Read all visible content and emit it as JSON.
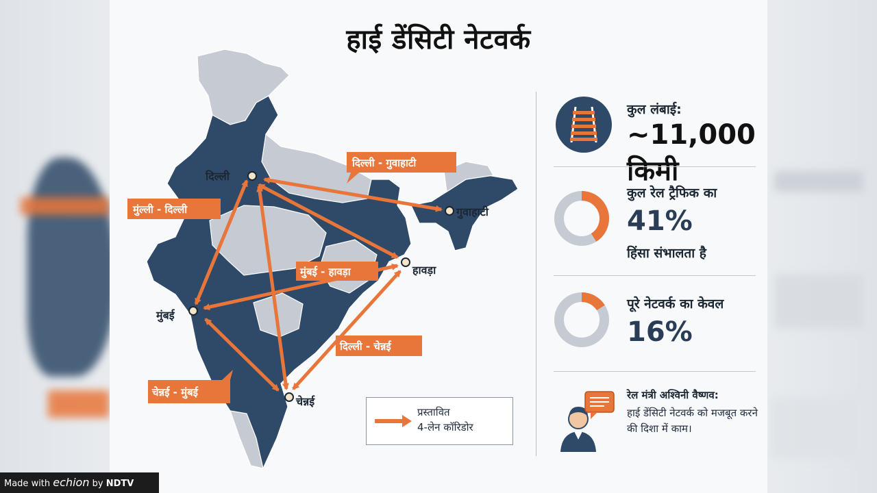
{
  "title": "हाई डेंसिटी नेटवर्क",
  "cities": [
    {
      "name": "दिल्ली"
    },
    {
      "name": "गुवाहाटी"
    },
    {
      "name": "हावड़ा"
    },
    {
      "name": "मुंबई"
    },
    {
      "name": "चेन्नई"
    }
  ],
  "corridors": [
    {
      "label": "दिल्ली - गुवाहाटी"
    },
    {
      "label": "मुंल्ली - दिल्ली"
    },
    {
      "label": "मुंबई - हावड़ा"
    },
    {
      "label": "दिल्ली - चेन्नई"
    },
    {
      "label": "चेन्नई - मुंबई"
    }
  ],
  "legend": {
    "line1": "प्रस्तावित",
    "line2": "4-लेन कॉरिडोर"
  },
  "stats": {
    "length_label": "कुल लंबाई:",
    "length_value": "~11,000 किमी",
    "traffic_label": "कुल रेल ट्रैफिक का",
    "traffic_value": "41%",
    "traffic_fraction": 0.41,
    "traffic_sub": "हिंसा संभालता है",
    "network_label": "पूरे नेटवर्क का केवल",
    "network_value": "16%",
    "network_fraction": 0.16
  },
  "quote": {
    "speaker": "रेल मंत्री अश्विनी वैष्णव:",
    "text": "हाई डेंसिटी नेटवर्क को मजबूत करने की दिशा में काम।"
  },
  "credit": {
    "made_with": "Made with",
    "brand": "echion",
    "by": "by",
    "network": "NDTV"
  },
  "colors": {
    "accent": "#e8763a",
    "navy": "#2f4a68",
    "grey_region": "#c5cad3",
    "dark_text": "#1b2633"
  },
  "icons": [
    "railway-track-icon",
    "minister-avatar-icon",
    "speech-bubble-icon",
    "arrow-right-icon"
  ]
}
